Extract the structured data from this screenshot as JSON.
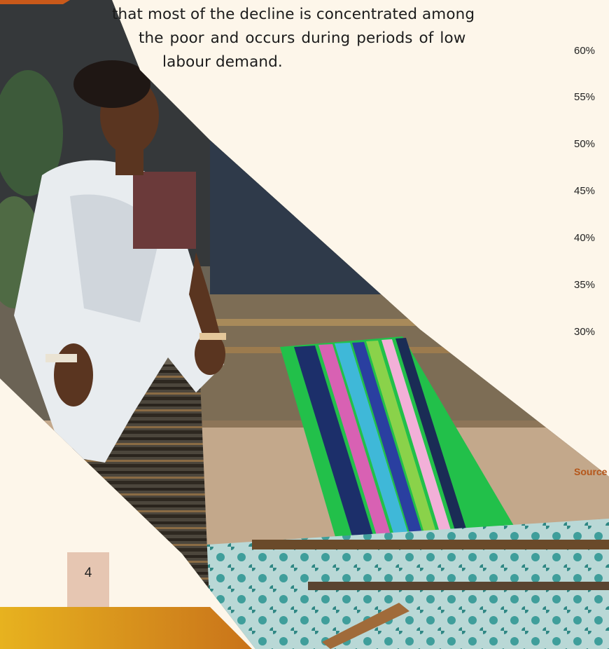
{
  "body_text": {
    "line1": "that most of the decline is concentrated among",
    "line2": "the poor and occurs during periods of low",
    "line3": "labour demand."
  },
  "chart_axis_ticks": [
    "60%",
    "55%",
    "50%",
    "45%",
    "40%",
    "35%",
    "30%"
  ],
  "source_label": "Source",
  "page_number": "4",
  "colors": {
    "background": "#fdf6ea",
    "accent_orange": "#c9591a",
    "gold": "#e0aa21",
    "source_text": "#b5561a",
    "page_box": "#e6c6b2"
  },
  "photo": {
    "subject": "woman in white shawl standing beside a colourful striped handloom weave on the ground"
  }
}
